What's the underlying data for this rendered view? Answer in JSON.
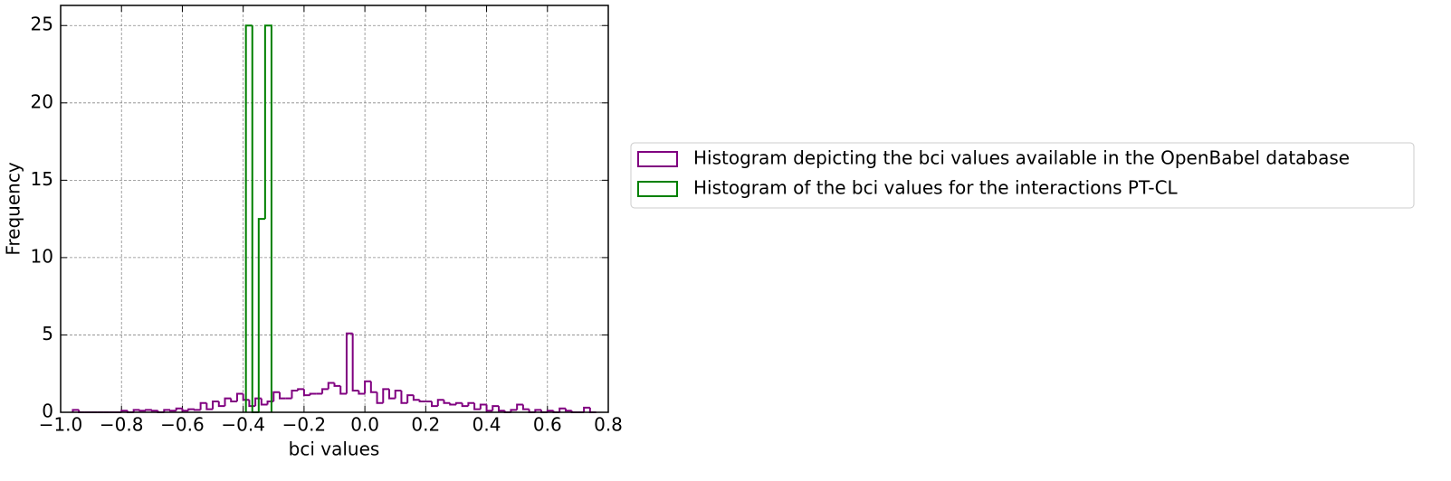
{
  "chart_data": {
    "type": "histogram",
    "xlabel": "bci values",
    "ylabel": "Frequency",
    "xlim": [
      -1.0,
      0.8
    ],
    "ylim": [
      0,
      26.3
    ],
    "xticks": [
      {
        "value": -1.0,
        "label": "−1.0"
      },
      {
        "value": -0.8,
        "label": "−0.8"
      },
      {
        "value": -0.6,
        "label": "−0.6"
      },
      {
        "value": -0.4,
        "label": "−0.4"
      },
      {
        "value": -0.2,
        "label": "−0.2"
      },
      {
        "value": 0.0,
        "label": "0.0"
      },
      0.2,
      0.4,
      0.6,
      0.8
    ],
    "yticks": [
      0,
      5,
      10,
      15,
      20,
      25
    ],
    "grid": true,
    "legend": "outside right",
    "series": [
      {
        "name": "Histogram depicting the bci values available in the OpenBabel database",
        "color": "#800080",
        "bins": [
          -0.96,
          -0.94,
          -0.92,
          -0.9,
          -0.88,
          -0.86,
          -0.84,
          -0.82,
          -0.8,
          -0.78,
          -0.76,
          -0.74,
          -0.72,
          -0.7,
          -0.68,
          -0.66,
          -0.64,
          -0.62,
          -0.6,
          -0.58,
          -0.56,
          -0.54,
          -0.52,
          -0.5,
          -0.48,
          -0.46,
          -0.44,
          -0.42,
          -0.4,
          -0.38,
          -0.36,
          -0.34,
          -0.32,
          -0.3,
          -0.28,
          -0.26,
          -0.24,
          -0.22,
          -0.2,
          -0.18,
          -0.16,
          -0.14,
          -0.12,
          -0.1,
          -0.08,
          -0.06,
          -0.04,
          -0.02,
          0.0,
          0.02,
          0.04,
          0.06,
          0.08,
          0.1,
          0.12,
          0.14,
          0.16,
          0.18,
          0.2,
          0.22,
          0.24,
          0.26,
          0.28,
          0.3,
          0.32,
          0.34,
          0.36,
          0.38,
          0.4,
          0.42,
          0.44,
          0.46,
          0.48,
          0.5,
          0.52,
          0.54,
          0.56,
          0.58,
          0.6,
          0.62,
          0.64,
          0.66,
          0.68,
          0.7,
          0.72,
          0.74,
          0.76
        ],
        "values": [
          0.15,
          0,
          0,
          0,
          0,
          0,
          0,
          0,
          0.1,
          0,
          0.15,
          0.1,
          0.15,
          0.1,
          0,
          0.15,
          0.1,
          0.25,
          0.1,
          0.2,
          0.15,
          0.6,
          0.2,
          0.7,
          0.4,
          0.9,
          0.7,
          1.2,
          0.8,
          0.4,
          0.9,
          0.5,
          0.7,
          1.3,
          0.9,
          0.9,
          1.4,
          1.5,
          1.1,
          1.2,
          1.2,
          1.5,
          1.9,
          1.7,
          1.2,
          5.1,
          1.4,
          1.2,
          2.0,
          1.3,
          0.6,
          1.5,
          0.9,
          1.4,
          0.6,
          1.1,
          0.8,
          0.7,
          0.7,
          0.4,
          0.8,
          0.6,
          0.5,
          0.6,
          0.4,
          0.6,
          0.2,
          0.5,
          0.1,
          0.4,
          0.1,
          0,
          0.15,
          0.5,
          0.2,
          0,
          0.15,
          0,
          0.1,
          0,
          0.25,
          0.1,
          0,
          0,
          0.3,
          0
        ]
      },
      {
        "name": "Histogram of the bci values for the interactions PT-CL",
        "color": "#008000",
        "bins": [
          -0.391,
          -0.37,
          -0.349,
          -0.328,
          -0.307
        ],
        "values": [
          25,
          0,
          12.5,
          25
        ]
      }
    ]
  }
}
